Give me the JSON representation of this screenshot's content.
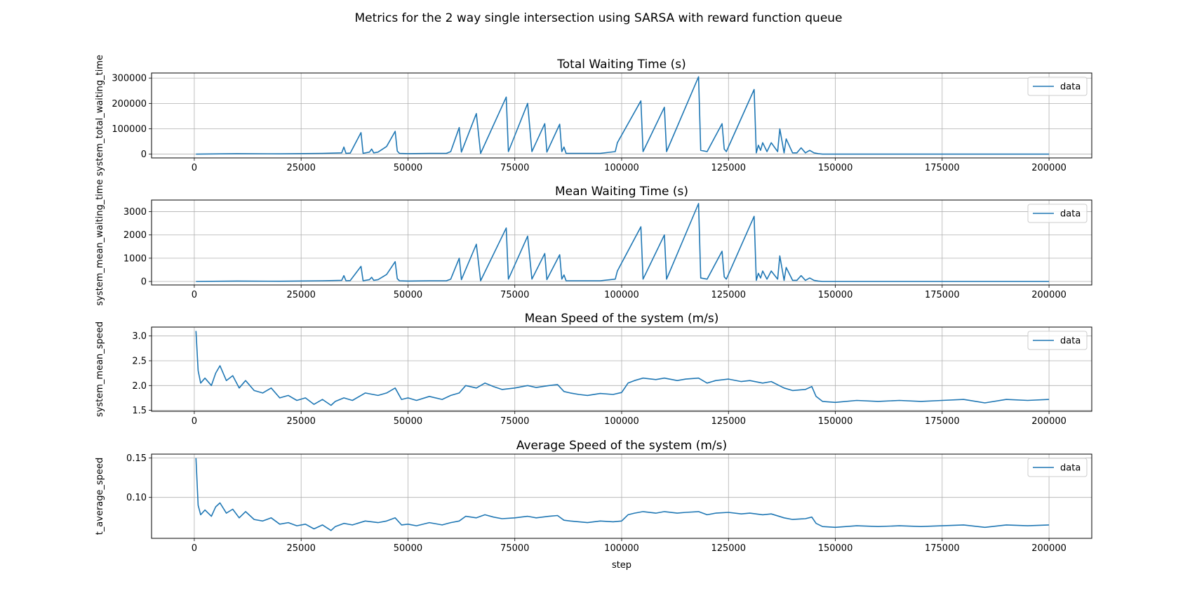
{
  "figure": {
    "suptitle": "Metrics for the 2 way single intersection using SARSA with reward function queue",
    "xlabel": "step",
    "colors": {
      "line": "#1f77b4",
      "grid": "#b0b0b0",
      "axes": "#000000",
      "legend_border": "#cccccc"
    }
  },
  "chart_data": [
    {
      "type": "line",
      "title": "Total Waiting Time (s)",
      "xlabel": "",
      "ylabel": "system_total_waiting_time",
      "xlim": [
        -10000,
        210000
      ],
      "ylim": [
        -15000,
        320000
      ],
      "xticks": [
        0,
        25000,
        50000,
        75000,
        100000,
        125000,
        150000,
        175000,
        200000
      ],
      "xtick_labels": [
        "0",
        "25000",
        "50000",
        "75000",
        "100000",
        "125000",
        "150000",
        "175000",
        "200000"
      ],
      "yticks": [
        0,
        100000,
        200000,
        300000
      ],
      "ytick_labels": [
        "0",
        "100000",
        "200000",
        "300000"
      ],
      "grid": true,
      "legend": "upper right",
      "series": [
        {
          "name": "data",
          "x": [
            400,
            10000,
            20000,
            30000,
            34500,
            35000,
            35500,
            36500,
            39000,
            39500,
            41000,
            41500,
            42000,
            43000,
            45000,
            47000,
            47500,
            48000,
            50000,
            55000,
            59000,
            60000,
            62000,
            62500,
            66000,
            67000,
            73000,
            73500,
            78000,
            79000,
            82000,
            82500,
            85500,
            86000,
            86500,
            87000,
            95000,
            98500,
            99000,
            104500,
            105000,
            110000,
            110500,
            118000,
            118500,
            120000,
            123500,
            124000,
            124500,
            131000,
            131500,
            132000,
            132500,
            133000,
            134000,
            135000,
            136500,
            137000,
            138000,
            138500,
            140000,
            141000,
            142000,
            143000,
            144000,
            145000,
            146000,
            147000,
            150000,
            175000,
            200000
          ],
          "y": [
            0,
            2000,
            1000,
            3000,
            5000,
            28000,
            3000,
            4000,
            85000,
            3000,
            8000,
            20000,
            5000,
            8000,
            30000,
            90000,
            12000,
            3000,
            2000,
            3000,
            3000,
            10000,
            105000,
            8000,
            160000,
            3000,
            225000,
            10000,
            200000,
            10000,
            120000,
            8000,
            118000,
            10000,
            28000,
            3000,
            3000,
            10000,
            45000,
            210000,
            10000,
            185000,
            10000,
            305000,
            15000,
            10000,
            120000,
            20000,
            10000,
            255000,
            5000,
            35000,
            15000,
            45000,
            10000,
            45000,
            10000,
            100000,
            5000,
            60000,
            5000,
            5000,
            25000,
            5000,
            15000,
            5000,
            2000,
            0,
            0,
            0,
            0
          ]
        }
      ]
    },
    {
      "type": "line",
      "title": "Mean Waiting Time (s)",
      "xlabel": "",
      "ylabel": "system_mean_waiting_time",
      "xlim": [
        -10000,
        210000
      ],
      "ylim": [
        -150,
        3500
      ],
      "xticks": [
        0,
        25000,
        50000,
        75000,
        100000,
        125000,
        150000,
        175000,
        200000
      ],
      "xtick_labels": [
        "0",
        "25000",
        "50000",
        "75000",
        "100000",
        "125000",
        "150000",
        "175000",
        "200000"
      ],
      "yticks": [
        0,
        1000,
        2000,
        3000
      ],
      "ytick_labels": [
        "0",
        "1000",
        "2000",
        "3000"
      ],
      "grid": true,
      "legend": "upper right",
      "series": [
        {
          "name": "data",
          "x": [
            400,
            10000,
            20000,
            30000,
            34500,
            35000,
            35500,
            36500,
            39000,
            39500,
            41000,
            41500,
            42000,
            43000,
            45000,
            47000,
            47500,
            48000,
            50000,
            55000,
            59000,
            60000,
            62000,
            62500,
            66000,
            67000,
            73000,
            73500,
            78000,
            79000,
            82000,
            82500,
            85500,
            86000,
            86500,
            87000,
            95000,
            98500,
            99000,
            104500,
            105000,
            110000,
            110500,
            118000,
            118500,
            120000,
            123500,
            124000,
            124500,
            131000,
            131500,
            132000,
            132500,
            133000,
            134000,
            135000,
            136500,
            137000,
            138000,
            138500,
            140000,
            141000,
            142000,
            143000,
            144000,
            145000,
            146000,
            147000,
            150000,
            175000,
            200000
          ],
          "y": [
            0,
            20,
            10,
            30,
            50,
            250,
            30,
            40,
            650,
            30,
            80,
            180,
            50,
            80,
            300,
            850,
            120,
            30,
            20,
            30,
            30,
            100,
            1000,
            80,
            1600,
            30,
            2300,
            100,
            1950,
            100,
            1200,
            80,
            1150,
            100,
            280,
            30,
            30,
            100,
            450,
            2350,
            100,
            2000,
            100,
            3350,
            150,
            100,
            1300,
            200,
            100,
            2800,
            50,
            350,
            150,
            450,
            100,
            450,
            100,
            1100,
            50,
            600,
            50,
            50,
            250,
            50,
            150,
            50,
            20,
            0,
            0,
            0,
            0
          ]
        }
      ]
    },
    {
      "type": "line",
      "title": "Mean Speed of the system (m/s)",
      "xlabel": "",
      "ylabel": "system_mean_speed",
      "xlim": [
        -10000,
        210000
      ],
      "ylim": [
        1.48,
        3.18
      ],
      "xticks": [
        0,
        25000,
        50000,
        75000,
        100000,
        125000,
        150000,
        175000,
        200000
      ],
      "xtick_labels": [
        "0",
        "25000",
        "50000",
        "75000",
        "100000",
        "125000",
        "150000",
        "175000",
        "200000"
      ],
      "yticks": [
        1.5,
        2.0,
        2.5,
        3.0
      ],
      "ytick_labels": [
        "1.5",
        "2.0",
        "2.5",
        "3.0"
      ],
      "grid": true,
      "legend": "upper right",
      "series": [
        {
          "name": "data",
          "x": [
            400,
            900,
            1500,
            2500,
            4000,
            5000,
            6000,
            7500,
            9000,
            10500,
            12000,
            14000,
            16000,
            18000,
            20000,
            22000,
            24000,
            26000,
            28000,
            30000,
            32000,
            33000,
            35000,
            37000,
            40000,
            43000,
            45000,
            47000,
            48500,
            50000,
            52000,
            55000,
            58000,
            60000,
            62000,
            63500,
            66000,
            68000,
            70000,
            72000,
            75000,
            78000,
            80000,
            83000,
            85000,
            86500,
            88000,
            90000,
            92000,
            95000,
            98000,
            100000,
            101500,
            103000,
            105000,
            108000,
            110000,
            113000,
            115000,
            118000,
            120000,
            122000,
            125000,
            128000,
            130000,
            133000,
            135000,
            138000,
            140000,
            143000,
            144500,
            145500,
            147000,
            150000,
            155000,
            160000,
            165000,
            170000,
            175000,
            180000,
            185000,
            190000,
            195000,
            200000
          ],
          "y": [
            3.1,
            2.3,
            2.05,
            2.15,
            2.0,
            2.25,
            2.4,
            2.1,
            2.2,
            1.95,
            2.1,
            1.9,
            1.85,
            1.95,
            1.75,
            1.8,
            1.7,
            1.75,
            1.62,
            1.72,
            1.6,
            1.68,
            1.75,
            1.7,
            1.85,
            1.8,
            1.85,
            1.95,
            1.72,
            1.75,
            1.7,
            1.78,
            1.72,
            1.8,
            1.85,
            2.0,
            1.95,
            2.05,
            1.98,
            1.92,
            1.95,
            2.0,
            1.96,
            2.0,
            2.02,
            1.88,
            1.85,
            1.82,
            1.8,
            1.84,
            1.82,
            1.86,
            2.05,
            2.1,
            2.15,
            2.12,
            2.15,
            2.1,
            2.13,
            2.15,
            2.05,
            2.1,
            2.13,
            2.08,
            2.1,
            2.05,
            2.08,
            1.95,
            1.9,
            1.92,
            1.98,
            1.78,
            1.68,
            1.66,
            1.7,
            1.68,
            1.7,
            1.68,
            1.7,
            1.72,
            1.65,
            1.72,
            1.7,
            1.72
          ]
        }
      ]
    },
    {
      "type": "line",
      "title": "Average Speed of the system (m/s)",
      "xlabel": "step",
      "ylabel": "t_average_speed",
      "xlim": [
        -10000,
        210000
      ],
      "ylim": [
        0.048,
        0.155
      ],
      "xticks": [
        0,
        25000,
        50000,
        75000,
        100000,
        125000,
        150000,
        175000,
        200000
      ],
      "xtick_labels": [
        "0",
        "25000",
        "50000",
        "75000",
        "100000",
        "125000",
        "150000",
        "175000",
        "200000"
      ],
      "yticks": [
        0.1,
        0.15
      ],
      "ytick_labels": [
        "0.10",
        "0.15"
      ],
      "grid": true,
      "legend": "upper right",
      "series": [
        {
          "name": "data",
          "x": [
            400,
            900,
            1500,
            2500,
            4000,
            5000,
            6000,
            7500,
            9000,
            10500,
            12000,
            14000,
            16000,
            18000,
            20000,
            22000,
            24000,
            26000,
            28000,
            30000,
            32000,
            33000,
            35000,
            37000,
            40000,
            43000,
            45000,
            47000,
            48500,
            50000,
            52000,
            55000,
            58000,
            60000,
            62000,
            63500,
            66000,
            68000,
            70000,
            72000,
            75000,
            78000,
            80000,
            83000,
            85000,
            86500,
            88000,
            90000,
            92000,
            95000,
            98000,
            100000,
            101500,
            103000,
            105000,
            108000,
            110000,
            113000,
            115000,
            118000,
            120000,
            122000,
            125000,
            128000,
            130000,
            133000,
            135000,
            138000,
            140000,
            143000,
            144500,
            145500,
            147000,
            150000,
            155000,
            160000,
            165000,
            170000,
            175000,
            180000,
            185000,
            190000,
            195000,
            200000
          ],
          "y": [
            0.15,
            0.09,
            0.078,
            0.084,
            0.076,
            0.088,
            0.093,
            0.08,
            0.085,
            0.074,
            0.082,
            0.072,
            0.07,
            0.074,
            0.066,
            0.068,
            0.064,
            0.066,
            0.06,
            0.065,
            0.058,
            0.063,
            0.067,
            0.065,
            0.07,
            0.068,
            0.07,
            0.074,
            0.065,
            0.066,
            0.064,
            0.068,
            0.065,
            0.068,
            0.07,
            0.076,
            0.074,
            0.078,
            0.075,
            0.073,
            0.074,
            0.076,
            0.074,
            0.076,
            0.077,
            0.071,
            0.07,
            0.069,
            0.068,
            0.07,
            0.069,
            0.07,
            0.078,
            0.08,
            0.082,
            0.08,
            0.082,
            0.08,
            0.081,
            0.082,
            0.078,
            0.08,
            0.081,
            0.079,
            0.08,
            0.078,
            0.079,
            0.074,
            0.072,
            0.073,
            0.075,
            0.067,
            0.063,
            0.062,
            0.064,
            0.063,
            0.064,
            0.063,
            0.064,
            0.065,
            0.062,
            0.065,
            0.064,
            0.065
          ]
        }
      ]
    }
  ]
}
